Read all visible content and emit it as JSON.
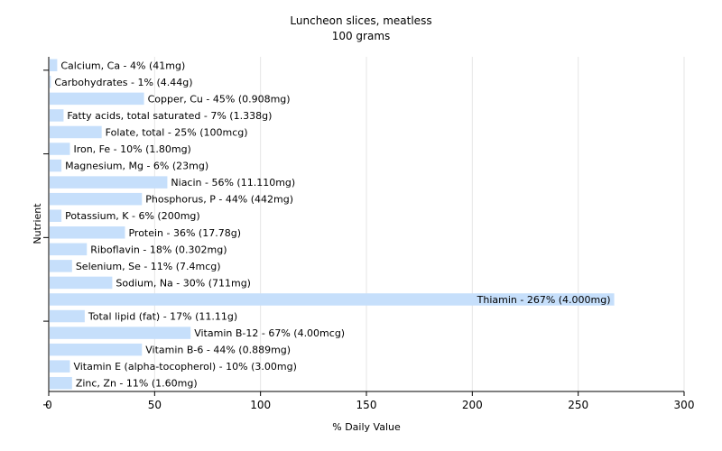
{
  "chart_data": {
    "type": "bar",
    "orientation": "horizontal",
    "title": "Luncheon slices, meatless",
    "subtitle": "100 grams",
    "xlabel": "% Daily Value",
    "ylabel": "Nutrient",
    "xlim": [
      0,
      300
    ],
    "xticks": [
      0,
      50,
      100,
      150,
      200,
      250,
      300
    ],
    "grid": true,
    "bar_color": "#c6dffb",
    "categories": [
      "Calcium, Ca",
      "Carbohydrates",
      "Copper, Cu",
      "Fatty acids, total saturated",
      "Folate, total",
      "Iron, Fe",
      "Magnesium, Mg",
      "Niacin",
      "Phosphorus, P",
      "Potassium, K",
      "Protein",
      "Riboflavin",
      "Selenium, Se",
      "Sodium, Na",
      "Thiamin",
      "Total lipid (fat)",
      "Vitamin B-12",
      "Vitamin B-6",
      "Vitamin E (alpha-tocopherol)",
      "Zinc, Zn"
    ],
    "values": [
      4,
      1,
      45,
      7,
      25,
      10,
      6,
      56,
      44,
      6,
      36,
      18,
      11,
      30,
      267,
      17,
      67,
      44,
      10,
      11
    ],
    "labels": [
      "Calcium, Ca - 4% (41mg)",
      "Carbohydrates - 1% (4.44g)",
      "Copper, Cu - 45% (0.908mg)",
      "Fatty acids, total saturated - 7% (1.338g)",
      "Folate, total - 25% (100mcg)",
      "Iron, Fe - 10% (1.80mg)",
      "Magnesium, Mg - 6% (23mg)",
      "Niacin - 56% (11.110mg)",
      "Phosphorus, P - 44% (442mg)",
      "Potassium, K - 6% (200mg)",
      "Protein - 36% (17.78g)",
      "Riboflavin - 18% (0.302mg)",
      "Selenium, Se - 11% (7.4mcg)",
      "Sodium, Na - 30% (711mg)",
      "Thiamin - 267% (4.000mg)",
      "Total lipid (fat) - 17% (11.11g)",
      "Vitamin B-12 - 67% (4.00mcg)",
      "Vitamin B-6 - 44% (0.889mg)",
      "Vitamin E (alpha-tocopherol) - 10% (3.00mg)",
      "Zinc, Zn - 11% (1.60mg)"
    ]
  }
}
